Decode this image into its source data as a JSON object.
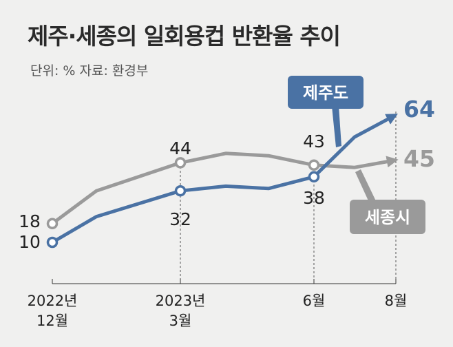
{
  "title": "제주·세종의 일회용컵 반환율 추이",
  "subtitle": "단위: % 자료: 환경부",
  "chart_data": {
    "type": "line",
    "title": "제주·세종의 일회용컵 반환율 추이",
    "unit": "%",
    "source": "환경부",
    "categories": [
      "2022년 12월",
      "2023년 3월",
      "6월",
      "8월"
    ],
    "x_tick_labels": [
      [
        "2022년",
        "12월"
      ],
      [
        "2023년",
        "3월"
      ],
      [
        "6월"
      ],
      [
        "8월"
      ]
    ],
    "series": [
      {
        "name": "제주도",
        "color": "#4a72a4",
        "labeled_values": [
          10,
          32,
          38,
          64
        ],
        "values": [
          10,
          21,
          32,
          34,
          33,
          38,
          55,
          64
        ]
      },
      {
        "name": "세종시",
        "color": "#9a9a9a",
        "labeled_values": [
          18,
          44,
          43,
          45
        ],
        "values": [
          18,
          32,
          44,
          48,
          47,
          43,
          42,
          45
        ]
      }
    ],
    "x": [
      "2022-12",
      "2023-01",
      "2023-03",
      "2023-04",
      "2023-05",
      "2023-06",
      "2023-07",
      "2023-08"
    ],
    "grid": false,
    "legend": "callouts"
  }
}
